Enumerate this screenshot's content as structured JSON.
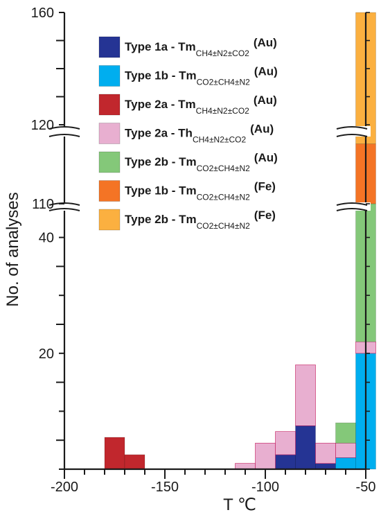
{
  "chart_data": {
    "type": "bar",
    "stacked": true,
    "xlabel": "T ℃",
    "ylabel": "No. of analyses",
    "xlim": [
      -200,
      -50
    ],
    "x_ticks": [
      -200,
      -150,
      -100,
      -50
    ],
    "y_ticks": [
      "20",
      "40",
      "110",
      "120",
      "160"
    ],
    "y_axis_breaks": [
      "40-110",
      "110-120"
    ],
    "legend_position": "top-center",
    "series": [
      {
        "name": "Type 1a - Tm",
        "subscript": "CH4±N2±CO2",
        "suffix": "(Au)",
        "color": "#253494",
        "bars": [
          {
            "x0": -95,
            "x1": -85,
            "y0": 0,
            "y1": 2.5
          },
          {
            "x0": -85,
            "x1": -75,
            "y0": 0,
            "y1": 7.5
          },
          {
            "x0": -75,
            "x1": -65,
            "y0": 0,
            "y1": 1
          }
        ]
      },
      {
        "name": "Type 1b - Tm",
        "subscript": "CO2±CH4±N2",
        "suffix": "(Au)",
        "color": "#00aeef",
        "bars": [
          {
            "x0": -65,
            "x1": -55,
            "y0": 0,
            "y1": 2
          },
          {
            "x0": -55,
            "x1": -45,
            "y0": 0,
            "y1": 20
          }
        ]
      },
      {
        "name": "Type 2a - Tm",
        "subscript": "CH4±N2±CO2",
        "suffix": "(Au)",
        "color": "#c1272d",
        "bars": [
          {
            "x0": -180,
            "x1": -170,
            "y0": 0,
            "y1": 5.5
          },
          {
            "x0": -170,
            "x1": -160,
            "y0": 0,
            "y1": 2.5
          }
        ]
      },
      {
        "name": "Type 2a - Th",
        "subscript": "CH4±N2±CO2",
        "suffix": "(Au)",
        "color": "#e8afd0",
        "bars": [
          {
            "x0": -115,
            "x1": -105,
            "y0": 0,
            "y1": 1
          },
          {
            "x0": -105,
            "x1": -95,
            "y0": 0,
            "y1": 4.5
          },
          {
            "x0": -95,
            "x1": -85,
            "y0": 2.5,
            "y1": 6.5
          },
          {
            "x0": -85,
            "x1": -75,
            "y0": 7.5,
            "y1": 18
          },
          {
            "x0": -75,
            "x1": -65,
            "y0": 1,
            "y1": 4.5
          },
          {
            "x0": -65,
            "x1": -55,
            "y0": 2,
            "y1": 4.5
          },
          {
            "x0": -55,
            "x1": -45,
            "y0": 20,
            "y1": 22
          }
        ]
      },
      {
        "name": "Type 2b - Tm",
        "subscript": "CO2±CH4±N2",
        "suffix": "(Au)",
        "color": "#84c879",
        "bars": [
          {
            "x0": -65,
            "x1": -55,
            "y0": 4.5,
            "y1": 8
          },
          {
            "x0": -55,
            "x1": -45,
            "y0": 22,
            "y1": 110
          }
        ]
      },
      {
        "name": "Type 1b - Tm",
        "subscript": "CO2±CH4±N2",
        "suffix": "(Fe)",
        "color": "#f47425",
        "bars": [
          {
            "x0": -55,
            "x1": -45,
            "y0": 110,
            "y1": 116
          }
        ]
      },
      {
        "name": "Type 2b - Tm",
        "subscript": "CO2±CH4±N2",
        "suffix": "(Fe)",
        "color": "#fbb040",
        "bars": [
          {
            "x0": -55,
            "x1": -45,
            "y0": 116,
            "y1": 160
          }
        ]
      }
    ]
  }
}
